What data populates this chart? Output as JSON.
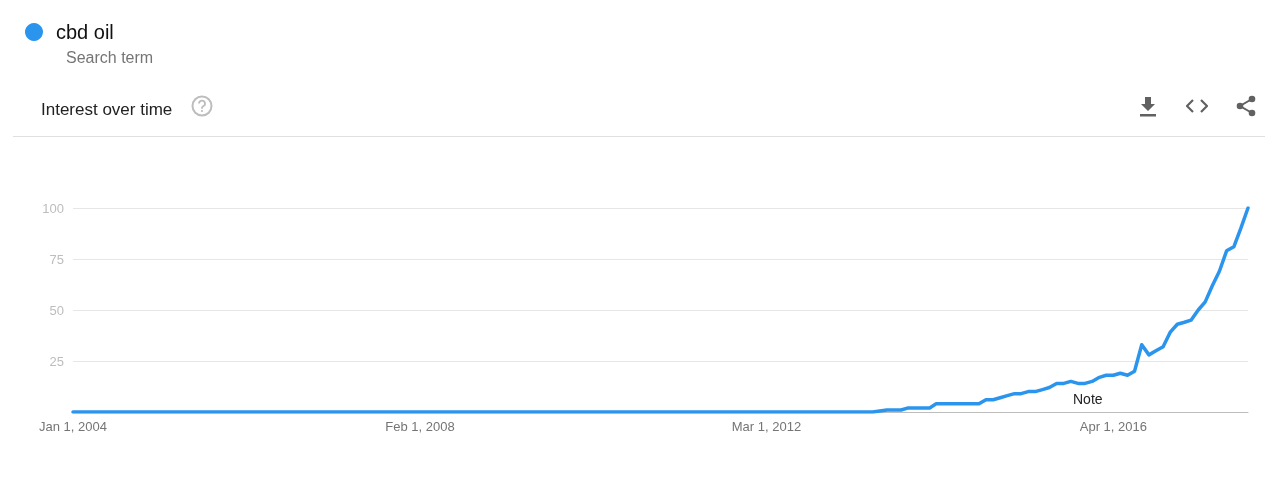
{
  "chart_data": {
    "type": "line",
    "title": "Interest over time",
    "subtitle": "Search term",
    "x": [
      "2004-01",
      "2013-06",
      "2013-08",
      "2013-10",
      "2013-11",
      "2014-02",
      "2014-03",
      "2014-09",
      "2014-10",
      "2014-11",
      "2014-12",
      "2015-01",
      "2015-02",
      "2015-03",
      "2015-04",
      "2015-05",
      "2015-06",
      "2015-07",
      "2015-08",
      "2015-09",
      "2015-10",
      "2015-11",
      "2015-12",
      "2016-01",
      "2016-02",
      "2016-03",
      "2016-04",
      "2016-05",
      "2016-06",
      "2016-07",
      "2016-08",
      "2016-09",
      "2016-10",
      "2016-11",
      "2016-12",
      "2017-01",
      "2017-02",
      "2017-03",
      "2017-04",
      "2017-05",
      "2017-06",
      "2017-07",
      "2017-08",
      "2017-09",
      "2017-10",
      "2017-11"
    ],
    "series": [
      {
        "name": "cbd oil",
        "color": "#2b95ee",
        "values": [
          0,
          0,
          1,
          1,
          2,
          2,
          4,
          4,
          6,
          6,
          7,
          8,
          9,
          9,
          10,
          10,
          11,
          12,
          14,
          14,
          15,
          14,
          14,
          15,
          17,
          18,
          18,
          19,
          18,
          20,
          33,
          28,
          30,
          32,
          39,
          43,
          44,
          45,
          50,
          54,
          62,
          69,
          79,
          81,
          90,
          100
        ]
      }
    ],
    "xlim": [
      "2004-01",
      "2017-11"
    ],
    "xticks": [
      {
        "value": "2004-01-01",
        "label": "Jan 1, 2004"
      },
      {
        "value": "2008-02-01",
        "label": "Feb 1, 2008"
      },
      {
        "value": "2012-03-01",
        "label": "Mar 1, 2012"
      },
      {
        "value": "2016-04-01",
        "label": "Apr 1, 2016"
      }
    ],
    "ylim": [
      0,
      100
    ],
    "yticks": [
      25,
      50,
      75,
      100
    ],
    "annotations": [
      "Note"
    ],
    "grid": "y",
    "legend": "top left",
    "marker": "none",
    "line_style": "solid"
  }
}
